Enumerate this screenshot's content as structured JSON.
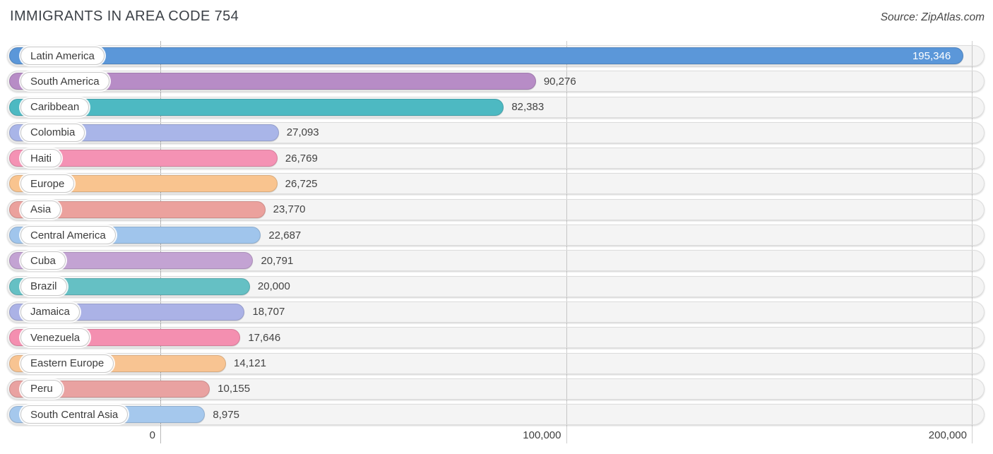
{
  "header": {
    "title": "IMMIGRANTS IN AREA CODE 754",
    "source": "Source: ZipAtlas.com"
  },
  "chart_data": {
    "type": "bar",
    "orientation": "horizontal",
    "title": "IMMIGRANTS IN AREA CODE 754",
    "categories": [
      "Latin America",
      "South America",
      "Caribbean",
      "Colombia",
      "Haiti",
      "Europe",
      "Asia",
      "Central America",
      "Cuba",
      "Brazil",
      "Jamaica",
      "Venezuela",
      "Eastern Europe",
      "Peru",
      "South Central Asia"
    ],
    "values": [
      195346,
      90276,
      82383,
      27093,
      26769,
      26725,
      23770,
      22687,
      20791,
      20000,
      18707,
      17646,
      14121,
      10155,
      8975
    ],
    "value_labels": [
      "195,346",
      "90,276",
      "82,383",
      "27,093",
      "26,769",
      "26,725",
      "23,770",
      "22,687",
      "20,791",
      "20,000",
      "18,707",
      "17,646",
      "14,121",
      "10,155",
      "8,975"
    ],
    "bar_colors": [
      "#5b97d9",
      "#b78cc6",
      "#4db9c2",
      "#a9b5e8",
      "#f492b4",
      "#f9c48f",
      "#eba19d",
      "#a0c5ec",
      "#c3a3d3",
      "#65c0c4",
      "#abb2e6",
      "#f48fb0",
      "#f8c492",
      "#e9a2a1",
      "#a5c8ed"
    ],
    "xlabel": "",
    "ylabel": "",
    "xlim": [
      0,
      200000
    ],
    "x_ticks": {
      "labels": [
        "0",
        "100,000",
        "200,000"
      ],
      "values": [
        0,
        100000,
        200000
      ]
    },
    "grid": "vertical-only",
    "legend": false
  }
}
